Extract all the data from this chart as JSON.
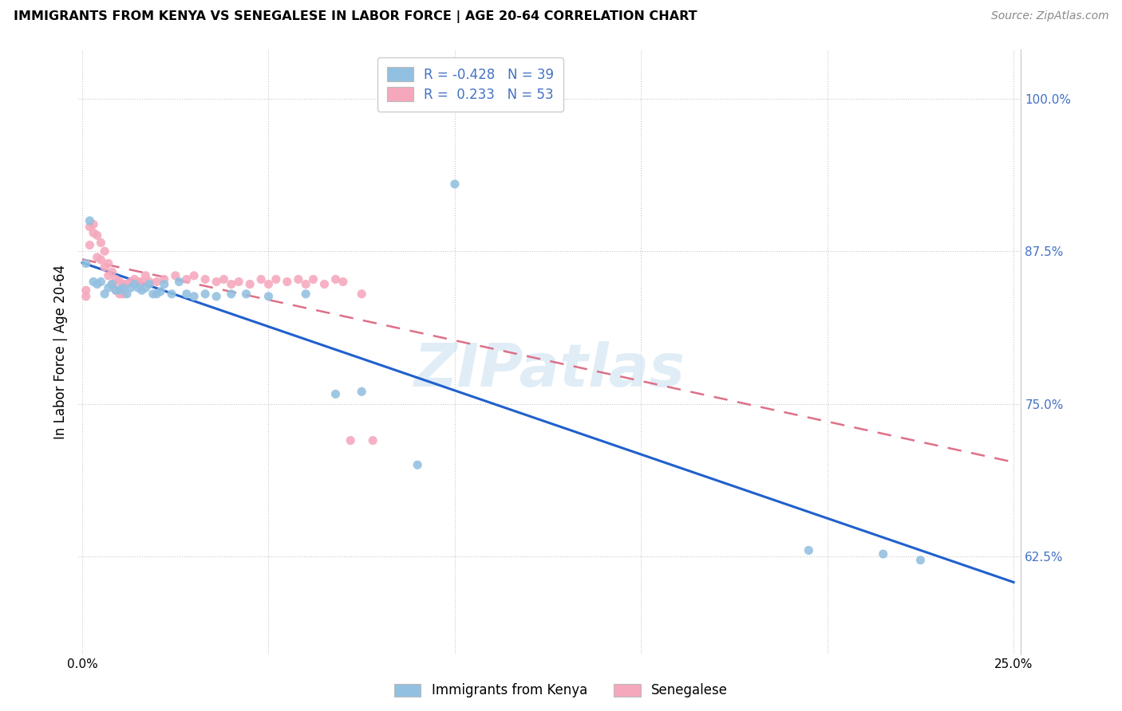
{
  "title": "IMMIGRANTS FROM KENYA VS SENEGALESE IN LABOR FORCE | AGE 20-64 CORRELATION CHART",
  "source": "Source: ZipAtlas.com",
  "ylabel": "In Labor Force | Age 20-64",
  "xlim": [
    -0.001,
    0.252
  ],
  "ylim": [
    0.545,
    1.04
  ],
  "yticks": [
    0.625,
    0.75,
    0.875,
    1.0
  ],
  "xticks": [
    0.0,
    0.05,
    0.1,
    0.15,
    0.2,
    0.25
  ],
  "xtick_labels": [
    "0.0%",
    "",
    "",
    "",
    "",
    "25.0%"
  ],
  "kenya_R": -0.428,
  "kenya_N": 39,
  "senegal_R": 0.233,
  "senegal_N": 53,
  "kenya_color": "#92c0e0",
  "senegal_color": "#f5a8bc",
  "kenya_line_color": "#2060cc",
  "senegal_line_color": "#dd7088",
  "axis_tick_color": "#4472c4",
  "kenya_x": [
    0.001,
    0.002,
    0.003,
    0.004,
    0.005,
    0.006,
    0.007,
    0.008,
    0.009,
    0.01,
    0.011,
    0.012,
    0.013,
    0.014,
    0.015,
    0.016,
    0.017,
    0.018,
    0.019,
    0.02,
    0.021,
    0.022,
    0.024,
    0.026,
    0.028,
    0.03,
    0.033,
    0.036,
    0.04,
    0.044,
    0.05,
    0.06,
    0.068,
    0.075,
    0.09,
    0.1,
    0.195,
    0.215,
    0.225
  ],
  "kenya_y": [
    0.865,
    0.9,
    0.85,
    0.848,
    0.85,
    0.84,
    0.845,
    0.848,
    0.843,
    0.843,
    0.845,
    0.84,
    0.845,
    0.848,
    0.845,
    0.843,
    0.845,
    0.848,
    0.84,
    0.84,
    0.842,
    0.848,
    0.84,
    0.85,
    0.84,
    0.838,
    0.84,
    0.838,
    0.84,
    0.84,
    0.838,
    0.84,
    0.758,
    0.76,
    0.7,
    0.93,
    0.63,
    0.627,
    0.622
  ],
  "senegal_x": [
    0.001,
    0.001,
    0.002,
    0.002,
    0.003,
    0.003,
    0.004,
    0.004,
    0.005,
    0.005,
    0.006,
    0.006,
    0.007,
    0.007,
    0.008,
    0.008,
    0.009,
    0.009,
    0.01,
    0.01,
    0.011,
    0.011,
    0.012,
    0.013,
    0.014,
    0.015,
    0.016,
    0.017,
    0.018,
    0.02,
    0.022,
    0.025,
    0.028,
    0.03,
    0.033,
    0.036,
    0.038,
    0.04,
    0.042,
    0.045,
    0.048,
    0.05,
    0.052,
    0.055,
    0.058,
    0.06,
    0.062,
    0.065,
    0.068,
    0.07,
    0.072,
    0.075,
    0.078
  ],
  "senegal_y": [
    0.843,
    0.838,
    0.895,
    0.88,
    0.897,
    0.89,
    0.888,
    0.87,
    0.882,
    0.868,
    0.875,
    0.862,
    0.865,
    0.855,
    0.858,
    0.848,
    0.852,
    0.843,
    0.85,
    0.84,
    0.848,
    0.84,
    0.848,
    0.85,
    0.852,
    0.85,
    0.85,
    0.855,
    0.85,
    0.85,
    0.852,
    0.855,
    0.852,
    0.855,
    0.852,
    0.85,
    0.852,
    0.848,
    0.85,
    0.848,
    0.852,
    0.848,
    0.852,
    0.85,
    0.852,
    0.848,
    0.852,
    0.848,
    0.852,
    0.85,
    0.72,
    0.84,
    0.72
  ],
  "watermark": "ZIPatlas"
}
